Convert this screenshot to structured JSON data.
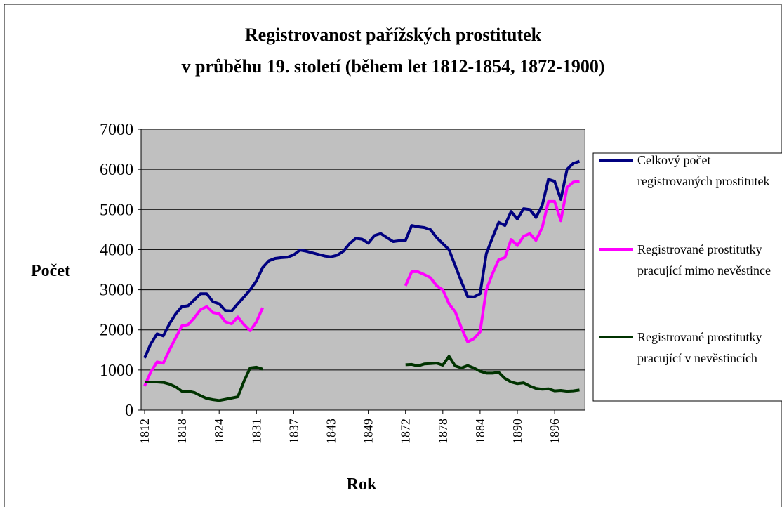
{
  "chart_data": {
    "type": "line",
    "title": [
      "Registrovanost pařížských prostitutek",
      "v průběhu 19. století (během let 1812-1854, 1872-1900)"
    ],
    "x_label": "Rok",
    "y_label": "Počet",
    "categories": [
      "1812",
      null,
      null,
      null,
      null,
      null,
      "1818",
      null,
      null,
      null,
      null,
      null,
      "1824",
      null,
      null,
      null,
      null,
      null,
      "1831",
      null,
      null,
      null,
      null,
      null,
      "1837",
      null,
      null,
      null,
      null,
      null,
      "1843",
      null,
      null,
      null,
      null,
      null,
      "1849",
      null,
      null,
      null,
      null,
      null,
      "1872",
      null,
      null,
      null,
      null,
      null,
      "1878",
      null,
      null,
      null,
      null,
      null,
      "1884",
      null,
      null,
      null,
      null,
      null,
      "1890",
      null,
      null,
      null,
      null,
      null,
      "1896",
      null,
      null,
      null,
      null
    ],
    "series": [
      {
        "name": "Celkový počet registrovaných prostitutek",
        "color": "#000080",
        "values": [
          1300,
          1650,
          1900,
          1850,
          2150,
          2400,
          2580,
          2600,
          2750,
          2900,
          2900,
          2700,
          2650,
          2480,
          2470,
          2650,
          2820,
          3000,
          3220,
          3550,
          3720,
          3780,
          3800,
          3810,
          3870,
          3990,
          3960,
          3920,
          3880,
          3840,
          3820,
          3860,
          3960,
          4150,
          4280,
          4260,
          4160,
          4350,
          4400,
          4300,
          4200,
          4220,
          4230,
          4600,
          4570,
          4550,
          4500,
          4300,
          4150,
          4000,
          3600,
          3200,
          2830,
          2820,
          2900,
          3900,
          4300,
          4680,
          4600,
          4950,
          4760,
          5020,
          5000,
          4800,
          5100,
          5750,
          5700,
          5250,
          6000,
          6150,
          6200
        ]
      },
      {
        "name": "Registrované prostitutky pracující mimo nevěstince",
        "color": "#ff00ff",
        "values": [
          600,
          950,
          1200,
          1170,
          1500,
          1800,
          2100,
          2130,
          2300,
          2500,
          2580,
          2430,
          2400,
          2200,
          2150,
          2320,
          2130,
          1980,
          2200,
          2550,
          null,
          null,
          null,
          null,
          null,
          null,
          null,
          null,
          null,
          null,
          null,
          null,
          null,
          null,
          null,
          null,
          null,
          null,
          null,
          null,
          null,
          null,
          3100,
          3450,
          3450,
          3380,
          3300,
          3100,
          3000,
          2650,
          2450,
          2050,
          1700,
          1780,
          1950,
          3000,
          3400,
          3750,
          3800,
          4250,
          4100,
          4330,
          4400,
          4230,
          4550,
          5200,
          5200,
          4720,
          5550,
          5680,
          5700
        ]
      },
      {
        "name": "Registrované prostitutky pracující v nevěstincích",
        "color": "#003300",
        "values": [
          700,
          700,
          700,
          690,
          650,
          580,
          470,
          470,
          440,
          360,
          290,
          260,
          240,
          270,
          300,
          330,
          720,
          1050,
          1070,
          1020,
          null,
          null,
          null,
          null,
          null,
          null,
          null,
          null,
          null,
          null,
          null,
          null,
          null,
          null,
          null,
          null,
          null,
          null,
          null,
          null,
          null,
          null,
          1130,
          1140,
          1100,
          1150,
          1160,
          1170,
          1120,
          1340,
          1100,
          1050,
          1110,
          1050,
          970,
          920,
          920,
          940,
          790,
          700,
          660,
          680,
          600,
          540,
          520,
          530,
          480,
          490,
          470,
          480,
          500
        ]
      }
    ],
    "ylim": [
      0,
      7000
    ],
    "yticks": [
      0,
      1000,
      2000,
      3000,
      4000,
      5000,
      6000,
      7000
    ],
    "grid": true,
    "legend": "right"
  }
}
